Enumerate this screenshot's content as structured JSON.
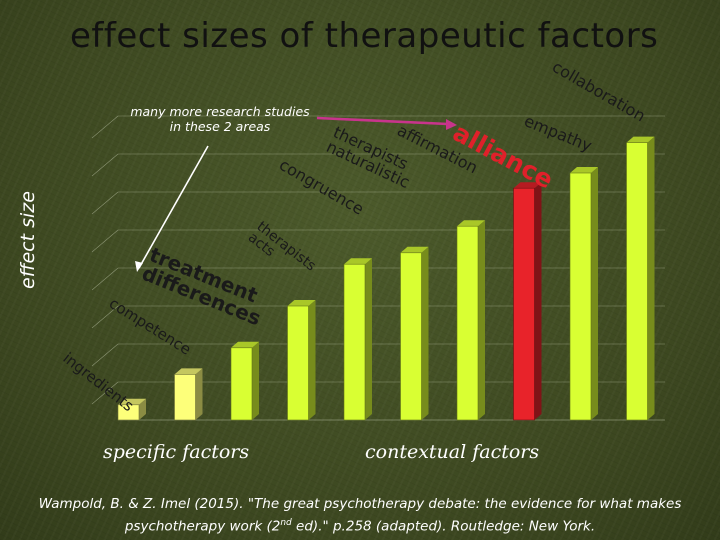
{
  "title": "effect sizes of therapeutic factors",
  "note": "many more research studies in these 2 areas",
  "colors": {
    "bar_green": "#d9ff33",
    "bar_yellow": "#fdff7a",
    "bar_highlight": "#e8232a",
    "arrow": "#c8348c",
    "text_dark": "#1a1a1a",
    "text_red": "#e0202a"
  },
  "chart_data": {
    "type": "bar",
    "ylabel": "effect size",
    "groups": [
      "specific factors",
      "contextual factors"
    ],
    "categories": [
      "ingredients",
      "competence",
      "treatment differences",
      "therapists' acts",
      "congruence",
      "therapists naturalistic",
      "affirmation",
      "alliance",
      "empathy",
      "collaboration"
    ],
    "values": [
      0.04,
      0.12,
      0.19,
      0.3,
      0.41,
      0.44,
      0.51,
      0.61,
      0.65,
      0.73
    ],
    "ylim": [
      0,
      0.9
    ],
    "grid": true,
    "highlight": "alliance"
  },
  "labels": [
    {
      "lines": [
        "ingredients"
      ]
    },
    {
      "lines": [
        "competence"
      ]
    },
    {
      "lines": [
        "treatment",
        "differences"
      ]
    },
    {
      "lines": [
        "therapists",
        "acts"
      ]
    },
    {
      "lines": [
        "congruence"
      ]
    },
    {
      "lines": [
        "therapists",
        "naturalistic"
      ]
    },
    {
      "lines": [
        "affirmation"
      ]
    },
    {
      "lines": [
        "alliance"
      ]
    },
    {
      "lines": [
        "empathy"
      ]
    },
    {
      "lines": [
        "collaboration"
      ]
    }
  ],
  "citation": {
    "part1": "Wampold, B. & Z. Imel (2015). \"The great psychotherapy debate: the evidence for what makes psychotherapy work (2",
    "sup": "nd",
    "part2": " ed).\" p.258 (adapted). Routledge: New York."
  }
}
